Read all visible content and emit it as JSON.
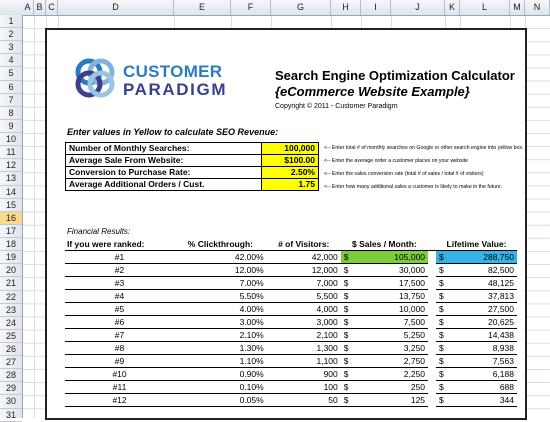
{
  "spreadsheet": {
    "columns": [
      "A",
      "B",
      "C",
      "D",
      "E",
      "F",
      "G",
      "H",
      "I",
      "J",
      "K",
      "L",
      "M",
      "N"
    ],
    "rows": [
      "1",
      "2",
      "3",
      "4",
      "5",
      "6",
      "7",
      "8",
      "9",
      "10",
      "11",
      "12",
      "13",
      "14",
      "15",
      "16",
      "17",
      "18",
      "19",
      "20",
      "21",
      "22",
      "23",
      "24",
      "25",
      "26",
      "27",
      "28",
      "29",
      "30",
      "31"
    ],
    "selected_row": "16"
  },
  "logo": {
    "line1": "CUSTOMER",
    "line2": "PARADIGM"
  },
  "header": {
    "title": "Search Engine Optimization Calculator",
    "subtitle": "{eCommerce Website Example}",
    "copyright": "Copyright © 2011 - Customer Paradigm"
  },
  "instructions": "Enter values in Yellow to calculate SEO Revenue:",
  "inputs": [
    {
      "label": "Number of Monthly Searches:",
      "value": "100,000",
      "note": "<-- Enter total # of monthly searches on Google or other search engine into yellow box."
    },
    {
      "label": "Average Sale From Website:",
      "value": "$100.00",
      "note": "<-- Enter the average order a customer places on your website"
    },
    {
      "label": "Conversion to Purchase Rate:",
      "value": "2.50%",
      "note": "<-- Enter the sales conversion rate (total # of sales / total # of visitors)"
    },
    {
      "label": "Average Additional Orders / Cust.",
      "value": "1.75",
      "note": "<-- Enter how many additional sales a customer is likely to make in the future."
    }
  ],
  "financial": {
    "title": "Financial Results:",
    "headers": [
      "If you were ranked:",
      "% Clickthrough:",
      "# of Visitors:",
      "$ Sales / Month:",
      "Lifetime Value:"
    ],
    "currency": "$",
    "rows": [
      {
        "rank": "#1",
        "ctr": "42.00%",
        "visitors": "42,000",
        "sales": "105,000",
        "lifetime": "288,750"
      },
      {
        "rank": "#2",
        "ctr": "12.00%",
        "visitors": "12,000",
        "sales": "30,000",
        "lifetime": "82,500"
      },
      {
        "rank": "#3",
        "ctr": "7.00%",
        "visitors": "7,000",
        "sales": "17,500",
        "lifetime": "48,125"
      },
      {
        "rank": "#4",
        "ctr": "5.50%",
        "visitors": "5,500",
        "sales": "13,750",
        "lifetime": "37,813"
      },
      {
        "rank": "#5",
        "ctr": "4.00%",
        "visitors": "4,000",
        "sales": "10,000",
        "lifetime": "27,500"
      },
      {
        "rank": "#6",
        "ctr": "3.00%",
        "visitors": "3,000",
        "sales": "7,500",
        "lifetime": "20,625"
      },
      {
        "rank": "#7",
        "ctr": "2.10%",
        "visitors": "2,100",
        "sales": "5,250",
        "lifetime": "14,438"
      },
      {
        "rank": "#8",
        "ctr": "1.30%",
        "visitors": "1,300",
        "sales": "3,250",
        "lifetime": "8,938"
      },
      {
        "rank": "#9",
        "ctr": "1.10%",
        "visitors": "1,100",
        "sales": "2,750",
        "lifetime": "7,563"
      },
      {
        "rank": "#10",
        "ctr": "0.90%",
        "visitors": "900",
        "sales": "2,250",
        "lifetime": "6,188"
      },
      {
        "rank": "#11",
        "ctr": "0.10%",
        "visitors": "100",
        "sales": "250",
        "lifetime": "688"
      },
      {
        "rank": "#12",
        "ctr": "0.05%",
        "visitors": "50",
        "sales": "125",
        "lifetime": "344"
      }
    ]
  },
  "colors": {
    "input_fill": "#ffff00",
    "sales_highlight": "#7ccd3b",
    "lifetime_highlight": "#33b3e8",
    "logo_blue": "#2c7bbf",
    "logo_navy": "#3b3f8c"
  }
}
